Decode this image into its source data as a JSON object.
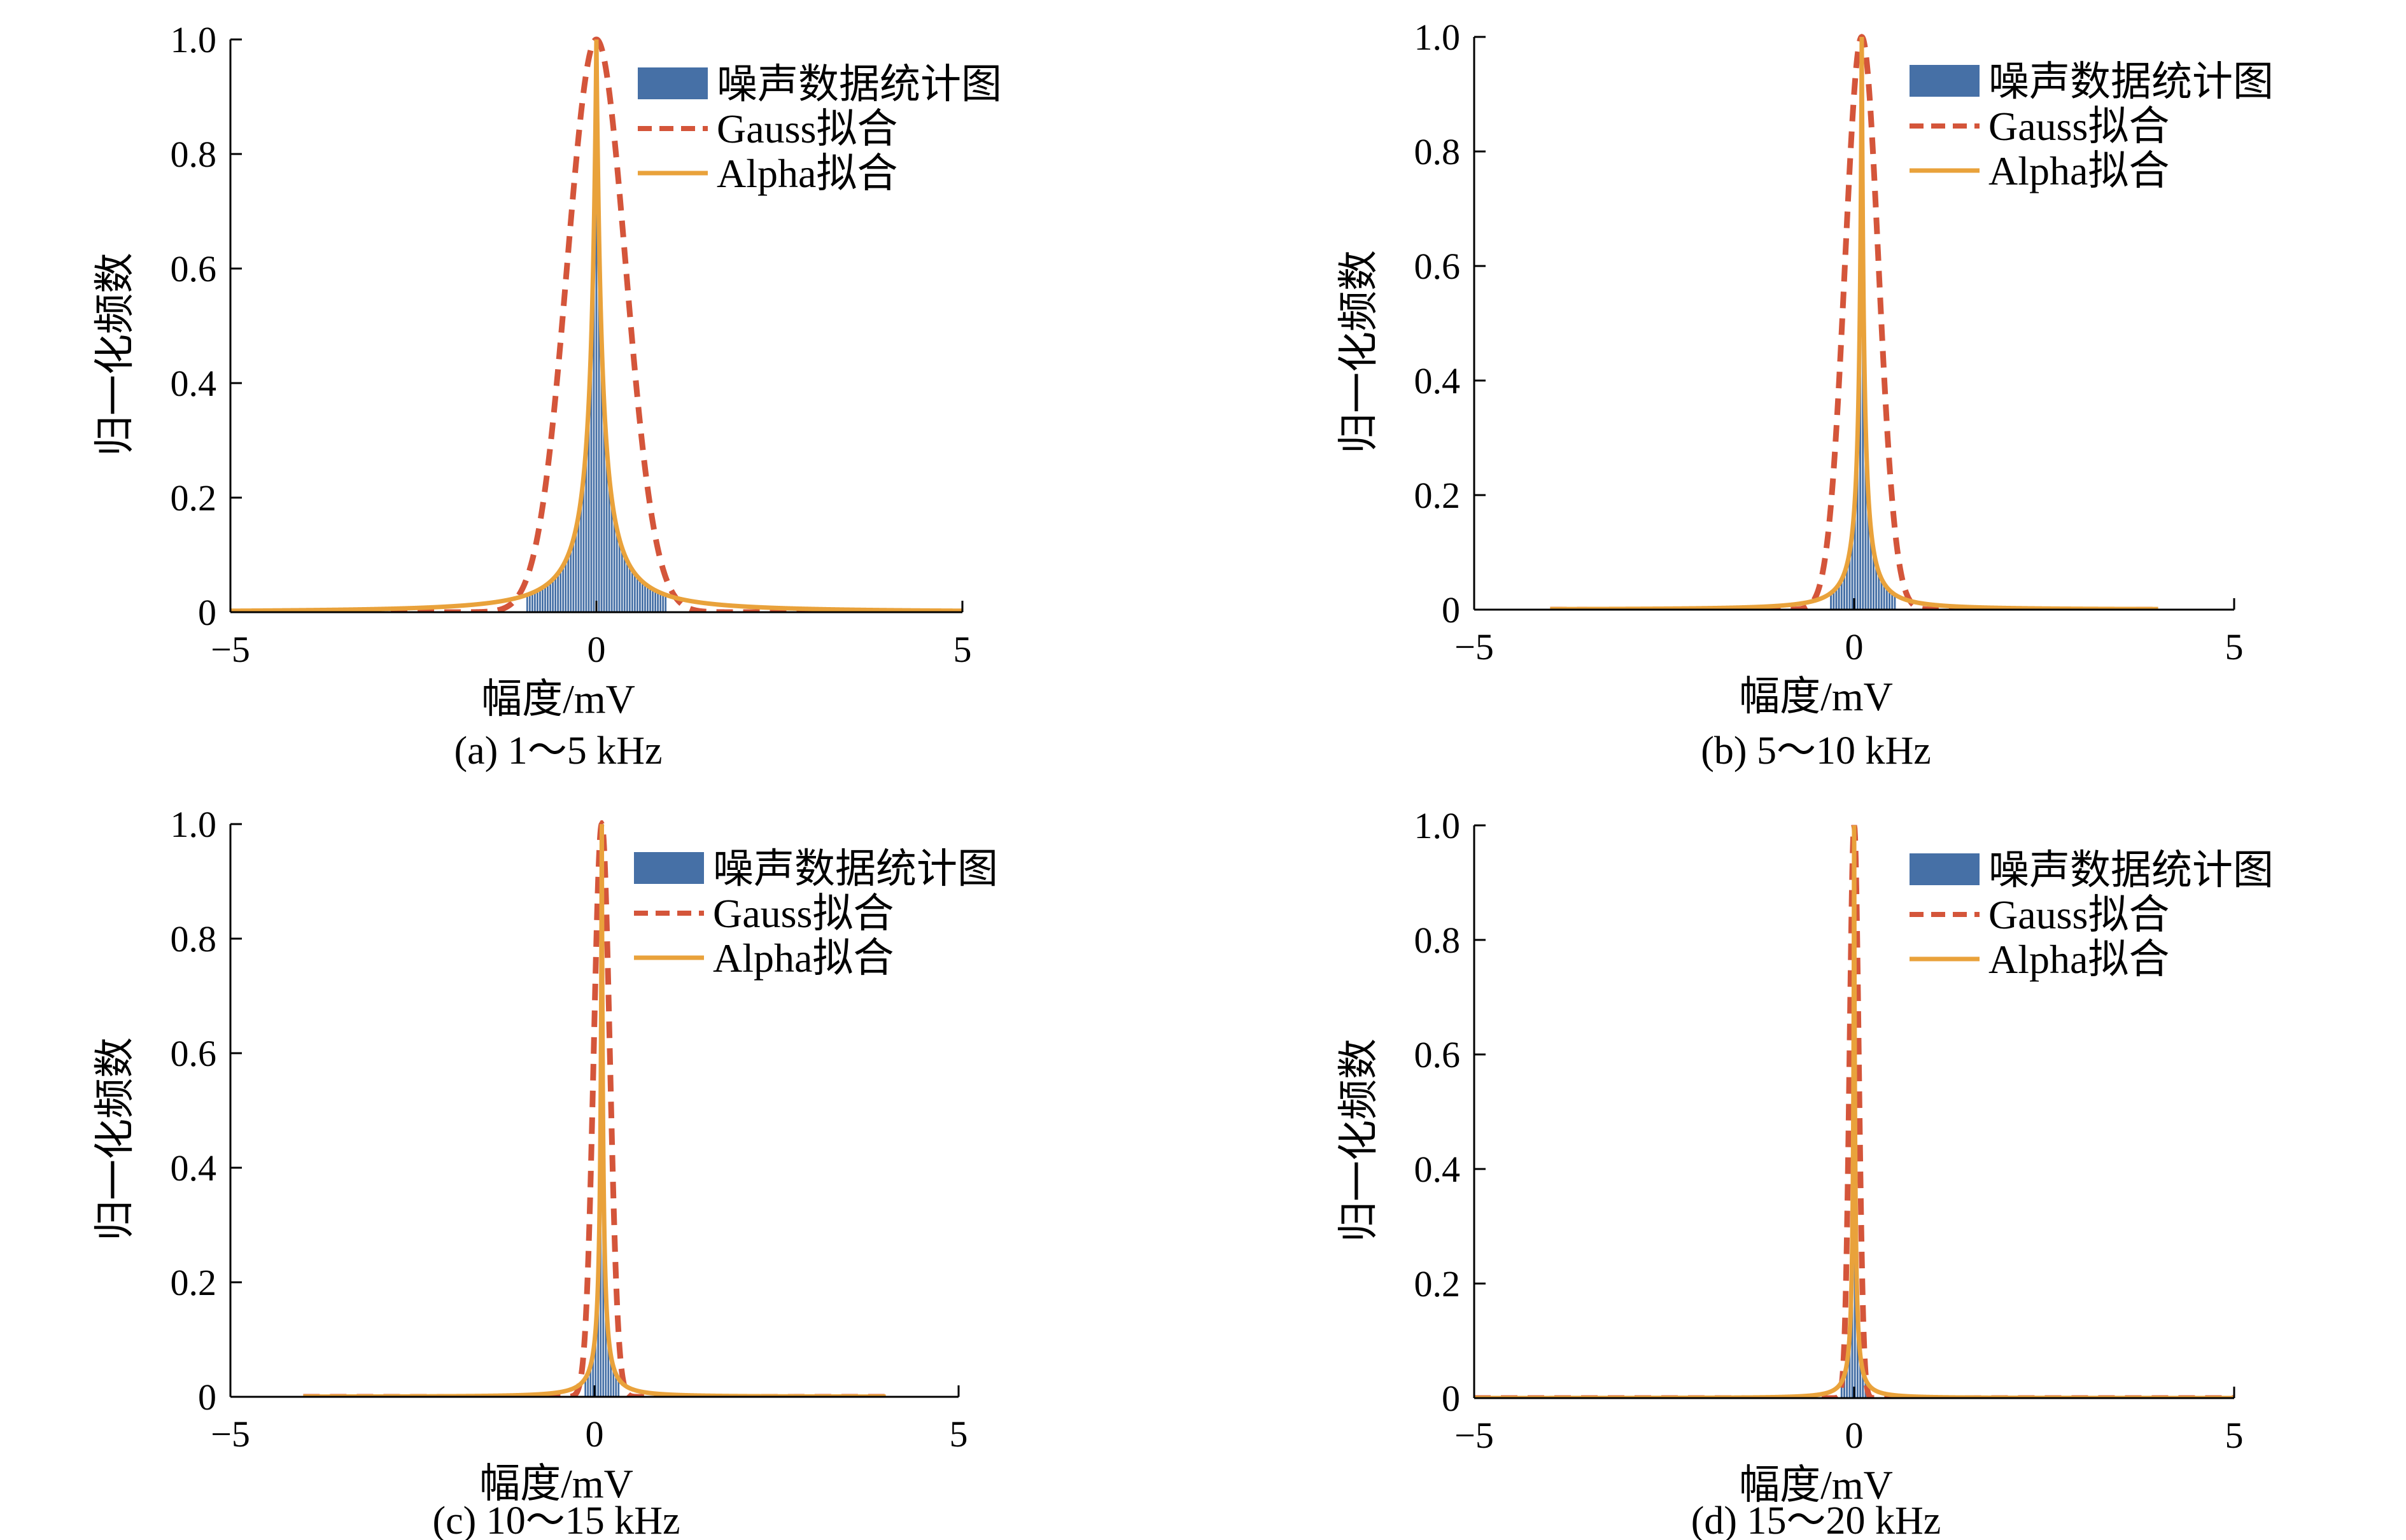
{
  "figure": {
    "colors": {
      "histogram": "#4670a6",
      "gauss": "#d4553a",
      "alpha": "#e9a23b",
      "axis": "#000000"
    }
  },
  "chart_data": [
    {
      "type": "bar",
      "panel": "a",
      "title": "",
      "caption": "(a) 1～5 kHz",
      "xlabel": "幅度/mV",
      "ylabel": "归一化频数",
      "xlim": [
        -5,
        5
      ],
      "ylim": [
        0,
        1.0
      ],
      "xticks": [
        "−5",
        "0",
        "5"
      ],
      "yticks": [
        "0",
        "0.2",
        "0.4",
        "0.6",
        "0.8",
        "1.0"
      ],
      "legend": [
        "噪声数据统计图",
        "Gauss拟合",
        "Alpha拟合"
      ],
      "legend_position": "top-right",
      "series": [
        {
          "name": "噪声数据统计图",
          "kind": "histogram",
          "peak": 0,
          "width": 0.32
        },
        {
          "name": "Gauss拟合",
          "kind": "gauss",
          "center": 0,
          "sigma": 0.4,
          "range": [
            -5,
            5
          ]
        },
        {
          "name": "Alpha拟合",
          "kind": "alpha",
          "center": 0,
          "scale": 0.12,
          "range": [
            -5,
            5
          ]
        }
      ]
    },
    {
      "type": "bar",
      "panel": "b",
      "title": "",
      "caption": "(b) 5～10 kHz",
      "xlabel": "幅度/mV",
      "ylabel": "归一化频数",
      "xlim": [
        -5,
        5
      ],
      "ylim": [
        0,
        1.0
      ],
      "xticks": [
        "−5",
        "0",
        "5"
      ],
      "yticks": [
        "0",
        "0.2",
        "0.4",
        "0.6",
        "0.8",
        "1.0"
      ],
      "legend": [
        "噪声数据统计图",
        "Gauss拟合",
        "Alpha拟合"
      ],
      "legend_position": "top-right",
      "series": [
        {
          "name": "噪声数据统计图",
          "kind": "histogram",
          "peak": 0.1,
          "width": 0.14
        },
        {
          "name": "Gauss拟合",
          "kind": "gauss",
          "center": 0.1,
          "sigma": 0.22,
          "range": [
            -4,
            4
          ]
        },
        {
          "name": "Alpha拟合",
          "kind": "alpha",
          "center": 0.1,
          "scale": 0.05,
          "range": [
            -4,
            4
          ]
        }
      ]
    },
    {
      "type": "bar",
      "panel": "c",
      "title": "",
      "caption": "(c) 10～15 kHz",
      "xlabel": "幅度/mV",
      "ylabel": "归一化频数",
      "xlim": [
        -5,
        5
      ],
      "ylim": [
        0,
        1.0
      ],
      "xticks": [
        "−5",
        "0",
        "5"
      ],
      "yticks": [
        "0",
        "0.2",
        "0.4",
        "0.6",
        "0.8",
        "1.0"
      ],
      "legend": [
        "噪声数据统计图",
        "Gauss拟合",
        "Alpha拟合"
      ],
      "legend_position": "top-right",
      "series": [
        {
          "name": "噪声数据统计图",
          "kind": "histogram",
          "peak": 0.1,
          "width": 0.08
        },
        {
          "name": "Gauss拟合",
          "kind": "gauss",
          "center": 0.1,
          "sigma": 0.11,
          "range": [
            -4,
            4
          ]
        },
        {
          "name": "Alpha拟合",
          "kind": "alpha",
          "center": 0.1,
          "scale": 0.03,
          "range": [
            -4,
            4
          ]
        }
      ]
    },
    {
      "type": "bar",
      "panel": "d",
      "title": "",
      "caption": "(d) 15～20 kHz",
      "xlabel": "幅度/mV",
      "ylabel": "归一化频数",
      "xlim": [
        -5,
        5
      ],
      "ylim": [
        0,
        1.0
      ],
      "xticks": [
        "−5",
        "0",
        "5"
      ],
      "yticks": [
        "0",
        "0.2",
        "0.4",
        "0.6",
        "0.8",
        "1.0"
      ],
      "legend": [
        "噪声数据统计图",
        "Gauss拟合",
        "Alpha拟合"
      ],
      "legend_position": "top-right",
      "series": [
        {
          "name": "噪声数据统计图",
          "kind": "histogram",
          "peak": 0,
          "width": 0.06
        },
        {
          "name": "Gauss拟合",
          "kind": "gauss",
          "center": 0,
          "sigma": 0.06,
          "range": [
            -5,
            5
          ]
        },
        {
          "name": "Alpha拟合",
          "kind": "alpha",
          "center": 0,
          "scale": 0.02,
          "range": [
            -5,
            5
          ]
        }
      ]
    }
  ]
}
